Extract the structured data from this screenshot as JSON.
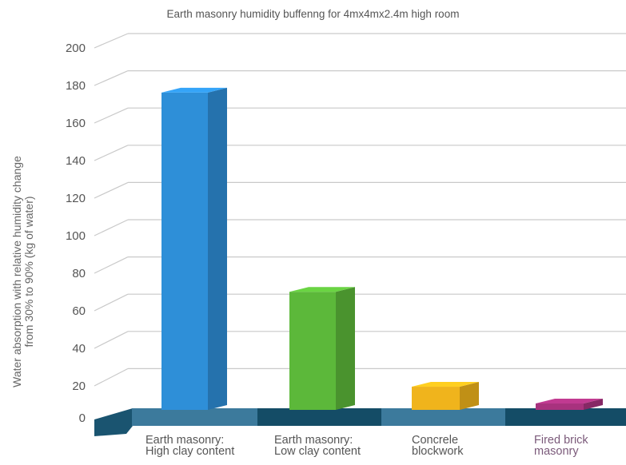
{
  "chart_data": {
    "type": "bar",
    "title": "Earth masonry humidity buffenng for 4mx4mx2.4m high room",
    "ylabel_lines": [
      "Water absorption with relative humidity change",
      "from 30% to 90% (kg of water)"
    ],
    "xlabel": "",
    "ylim": [
      0,
      200
    ],
    "yticks": [
      0,
      20,
      40,
      60,
      80,
      100,
      120,
      140,
      160,
      180,
      200
    ],
    "grid": true,
    "categories": [
      {
        "lines": [
          "Earth masonry:",
          "High clay content"
        ]
      },
      {
        "lines": [
          "Earth masonry:",
          "Low clay  content"
        ]
      },
      {
        "lines": [
          "Concrele",
          "blockwork"
        ]
      },
      {
        "lines": [
          "Fired brick",
          "masonry"
        ]
      }
    ],
    "values": [
      170,
      63,
      12,
      3
    ],
    "colors": {
      "bars": [
        "#2e8fd8",
        "#5cb83a",
        "#f0b41c",
        "#a8327e"
      ],
      "floor_front": [
        "#3c7a9c",
        "#144c66",
        "#3c7a9c",
        "#144c66"
      ],
      "floor_left": "#1a5470",
      "grid": "#c9c9c9"
    }
  }
}
